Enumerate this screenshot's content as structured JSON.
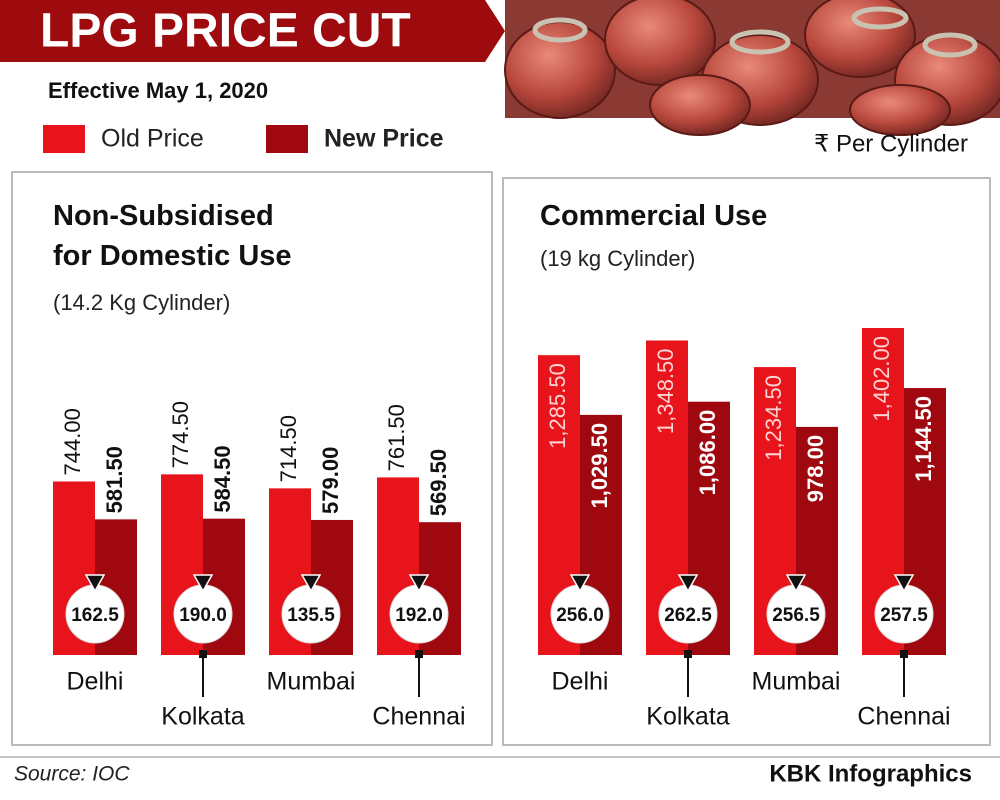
{
  "header": {
    "title": "LPG PRICE CUT",
    "subtitle": "Effective May 1, 2020",
    "unit": "₹ Per Cylinder"
  },
  "chart_data": [
    {
      "type": "bar",
      "title": "Non-Subsidised for Domestic Use",
      "subtitle": "(14.2 Kg Cylinder)",
      "categories": [
        "Delhi",
        "Kolkata",
        "Mumbai",
        "Chennai"
      ],
      "series": [
        {
          "name": "Old Price",
          "color": "#e8141b",
          "values": [
            744.0,
            774.5,
            714.5,
            761.5
          ],
          "value_labels": [
            "744.00",
            "774.50",
            "714.50",
            "761.50"
          ]
        },
        {
          "name": "New Price",
          "color": "#a0080f",
          "values": [
            581.5,
            584.5,
            579.0,
            569.5
          ],
          "value_labels": [
            "581.50",
            "584.50",
            "579.00",
            "569.50"
          ]
        }
      ],
      "cuts": [
        162.5,
        190.0,
        135.5,
        192.0
      ],
      "cut_labels": [
        "162.5",
        "190.0",
        "135.5",
        "192.0"
      ]
    },
    {
      "type": "bar",
      "title": "Commercial Use",
      "subtitle": "(19 kg Cylinder)",
      "categories": [
        "Delhi",
        "Kolkata",
        "Mumbai",
        "Chennai"
      ],
      "series": [
        {
          "color": "#e8141b",
          "values": [
            1285.5,
            1348.5,
            1234.5,
            1402.0
          ],
          "value_labels": [
            "1,285.50",
            "1,348.50",
            "1,234.50",
            "1,402.00"
          ]
        },
        {
          "color": "#a0080f",
          "values": [
            1029.5,
            1086.0,
            978.0,
            1144.5
          ],
          "value_labels": [
            "1,029.50",
            "1,086.00",
            "978.00",
            "1,144.50"
          ]
        }
      ],
      "cuts": [
        256.0,
        262.5,
        256.5,
        257.5
      ],
      "cut_labels": [
        "256.0",
        "262.5",
        "256.5",
        "257.5"
      ]
    }
  ],
  "footer": {
    "source": "Source: IOC",
    "brand": "KBK Infographics"
  }
}
